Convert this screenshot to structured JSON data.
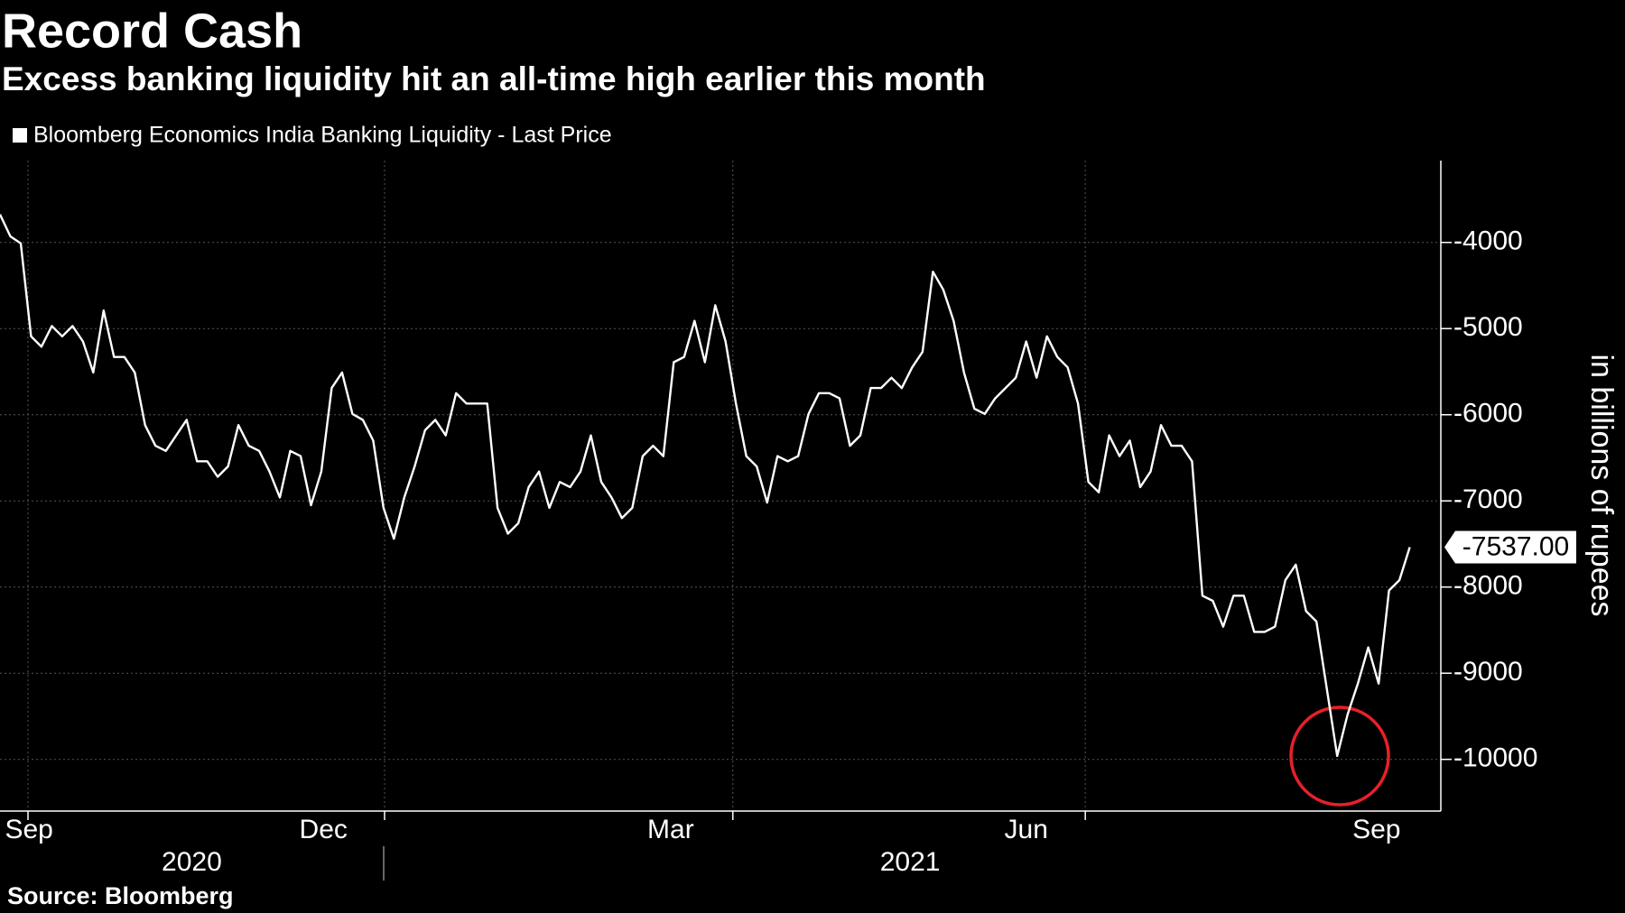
{
  "chart_data": {
    "type": "line",
    "title": "Record Cash",
    "subtitle": "Excess banking liquidity hit an all-time high earlier this month",
    "y_label": "in billions of rupees",
    "source": "Source: Bloomberg",
    "series": [
      {
        "name": "Bloomberg Economics India Banking Liquidity - Last Price",
        "color": "#ffffff",
        "values": [
          -3675,
          -3930,
          -4010,
          -5090,
          -5210,
          -4970,
          -5090,
          -4970,
          -5150,
          -5510,
          -4790,
          -5330,
          -5330,
          -5510,
          -6120,
          -6360,
          -6420,
          -6240,
          -6060,
          -6540,
          -6540,
          -6720,
          -6600,
          -6120,
          -6360,
          -6420,
          -6660,
          -6960,
          -6420,
          -6480,
          -7050,
          -6660,
          -5690,
          -5510,
          -5990,
          -6060,
          -6300,
          -7080,
          -7440,
          -6960,
          -6600,
          -6180,
          -6060,
          -6240,
          -5750,
          -5870,
          -5870,
          -5870,
          -7080,
          -7380,
          -7260,
          -6840,
          -6660,
          -7080,
          -6780,
          -6840,
          -6660,
          -6240,
          -6780,
          -6960,
          -7200,
          -7080,
          -6480,
          -6360,
          -6480,
          -5390,
          -5330,
          -4910,
          -5390,
          -4730,
          -5150,
          -5870,
          -6480,
          -6600,
          -7020,
          -6480,
          -6540,
          -6480,
          -5990,
          -5750,
          -5750,
          -5810,
          -6360,
          -6240,
          -5690,
          -5690,
          -5570,
          -5690,
          -5450,
          -5270,
          -4340,
          -4550,
          -4910,
          -5510,
          -5930,
          -5990,
          -5810,
          -5690,
          -5570,
          -5150,
          -5570,
          -5090,
          -5330,
          -5450,
          -5870,
          -6780,
          -6900,
          -6240,
          -6480,
          -6300,
          -6840,
          -6660,
          -6120,
          -6360,
          -6360,
          -6540,
          -8100,
          -8160,
          -8460,
          -8100,
          -8100,
          -8520,
          -8520,
          -8460,
          -7920,
          -7740,
          -8280,
          -8400,
          -9180,
          -9960,
          -9480,
          -9120,
          -8700,
          -9120,
          -8040,
          -7920,
          -7537
        ]
      }
    ],
    "annotations": [
      {
        "value": -7537,
        "label": "-7537.00"
      }
    ],
    "xlim": [
      0,
      139
    ],
    "xticks": [
      {
        "value": 2.8,
        "label": "Sep"
      },
      {
        "value": 31.2,
        "label": "Dec"
      },
      {
        "value": 64.7,
        "label": "Mar"
      },
      {
        "value": 99.0,
        "label": "Jun"
      },
      {
        "value": 132.8,
        "label": "Sep"
      }
    ],
    "xgrid": [
      2.7,
      37.1,
      70.7,
      104.7
    ],
    "years": [
      {
        "value": 18.5,
        "label": "2020"
      },
      {
        "value": 87.8,
        "label": "2021"
      }
    ],
    "ylim": [
      -10600,
      -3050
    ],
    "yticks": [
      -4000,
      -5000,
      -6000,
      -7000,
      -8000,
      -9000,
      -10000
    ],
    "grid": true
  }
}
